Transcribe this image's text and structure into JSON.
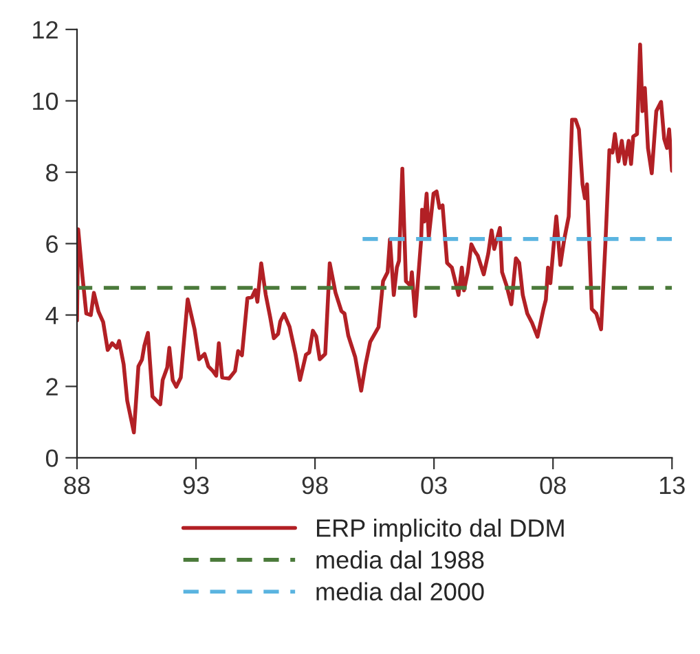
{
  "chart_data": {
    "type": "line",
    "xlim": [
      1988,
      2013
    ],
    "ylim": [
      0,
      12
    ],
    "xticks": [
      {
        "value": 1988,
        "label": "88"
      },
      {
        "value": 1993,
        "label": "93"
      },
      {
        "value": 1998,
        "label": "98"
      },
      {
        "value": 2003,
        "label": "03"
      },
      {
        "value": 2008,
        "label": "08"
      },
      {
        "value": 2013,
        "label": "13"
      }
    ],
    "yticks": [
      0,
      2,
      4,
      6,
      8,
      10,
      12
    ],
    "grid": false,
    "legend": "bottom",
    "marker": "none",
    "series": [
      {
        "name": "ERP implicito dal DDM",
        "color": "#b22025",
        "line_style": "solid",
        "x": [
          1988.0,
          1988.05,
          1988.23,
          1988.39,
          1988.58,
          1988.71,
          1988.9,
          1989.1,
          1989.29,
          1989.48,
          1989.67,
          1989.77,
          1989.96,
          1990.11,
          1990.39,
          1990.58,
          1990.73,
          1990.83,
          1990.98,
          1991.17,
          1991.5,
          1991.6,
          1991.79,
          1991.88,
          1992.02,
          1992.17,
          1992.36,
          1992.65,
          1992.94,
          1993.13,
          1993.36,
          1993.52,
          1993.71,
          1993.85,
          1993.96,
          1994.1,
          1994.39,
          1994.64,
          1994.77,
          1994.93,
          1995.16,
          1995.35,
          1995.49,
          1995.58,
          1995.74,
          1995.93,
          1996.12,
          1996.27,
          1996.45,
          1996.54,
          1996.7,
          1996.93,
          1997.18,
          1997.37,
          1997.62,
          1997.76,
          1997.91,
          1998.05,
          1998.2,
          1998.43,
          1998.62,
          1998.86,
          1999.11,
          1999.24,
          1999.4,
          1999.69,
          1999.94,
          2000.12,
          2000.32,
          2000.67,
          2000.86,
          2001.05,
          2001.15,
          2001.31,
          2001.44,
          2001.53,
          2001.67,
          2001.82,
          2002.02,
          2002.07,
          2002.21,
          2002.46,
          2002.5,
          2002.59,
          2002.69,
          2002.78,
          2002.98,
          2003.11,
          2003.23,
          2003.36,
          2003.55,
          2003.75,
          2003.94,
          2004.03,
          2004.17,
          2004.26,
          2004.42,
          2004.57,
          2004.71,
          2004.84,
          2005.09,
          2005.28,
          2005.42,
          2005.53,
          2005.77,
          2005.86,
          2006.05,
          2006.25,
          2006.44,
          2006.58,
          2006.73,
          2006.92,
          2007.12,
          2007.35,
          2007.6,
          2007.7,
          2007.79,
          2007.89,
          2008.04,
          2008.14,
          2008.31,
          2008.47,
          2008.66,
          2008.8,
          2008.95,
          2009.09,
          2009.24,
          2009.34,
          2009.43,
          2009.63,
          2009.82,
          2010.02,
          2010.21,
          2010.37,
          2010.5,
          2010.6,
          2010.75,
          2010.89,
          2011.02,
          2011.18,
          2011.28,
          2011.37,
          2011.53,
          2011.66,
          2011.76,
          2011.86,
          2011.99,
          2012.15,
          2012.34,
          2012.54,
          2012.67,
          2012.79,
          2012.88,
          2013.0
        ],
        "values": [
          3.85,
          6.4,
          5.08,
          4.04,
          4.0,
          4.62,
          4.1,
          3.8,
          3.02,
          3.21,
          3.08,
          3.27,
          2.62,
          1.6,
          0.71,
          2.56,
          2.75,
          3.14,
          3.5,
          1.72,
          1.5,
          2.18,
          2.53,
          3.08,
          2.18,
          1.99,
          2.25,
          4.44,
          3.6,
          2.76,
          2.91,
          2.56,
          2.43,
          2.3,
          3.21,
          2.25,
          2.22,
          2.43,
          2.99,
          2.87,
          4.47,
          4.5,
          4.7,
          4.37,
          5.45,
          4.57,
          3.93,
          3.35,
          3.47,
          3.82,
          4.03,
          3.67,
          2.91,
          2.18,
          2.89,
          2.95,
          3.56,
          3.4,
          2.76,
          2.91,
          5.45,
          4.63,
          4.11,
          4.04,
          3.42,
          2.82,
          1.88,
          2.6,
          3.25,
          3.66,
          4.95,
          5.2,
          6.12,
          4.56,
          5.33,
          5.52,
          8.1,
          4.95,
          4.82,
          5.2,
          3.97,
          6.11,
          6.95,
          6.62,
          7.4,
          6.18,
          7.4,
          7.46,
          7.0,
          7.07,
          5.46,
          5.33,
          4.82,
          4.56,
          5.33,
          4.69,
          5.2,
          5.98,
          5.79,
          5.66,
          5.14,
          5.72,
          6.37,
          5.85,
          6.44,
          5.2,
          4.82,
          4.3,
          5.59,
          5.46,
          4.56,
          4.04,
          3.78,
          3.39,
          4.17,
          4.43,
          5.33,
          4.89,
          6.05,
          6.76,
          5.4,
          6.11,
          6.76,
          9.47,
          9.47,
          9.2,
          7.66,
          7.27,
          7.66,
          4.17,
          4.04,
          3.6,
          6.11,
          8.62,
          8.55,
          9.07,
          8.3,
          8.88,
          8.23,
          8.88,
          8.23,
          9.0,
          9.07,
          11.58,
          9.71,
          10.36,
          8.68,
          7.97,
          9.71,
          9.97,
          8.94,
          8.68,
          9.2,
          8.04
        ]
      },
      {
        "name": "media dal 1988",
        "color": "#4a7a3a",
        "line_style": "dashed",
        "x": [
          1988,
          2013
        ],
        "values": [
          4.76,
          4.76
        ]
      },
      {
        "name": "media dal 2000",
        "color": "#5ab4e0",
        "line_style": "dashed",
        "x": [
          2000,
          2013
        ],
        "values": [
          6.13,
          6.13
        ]
      }
    ]
  }
}
